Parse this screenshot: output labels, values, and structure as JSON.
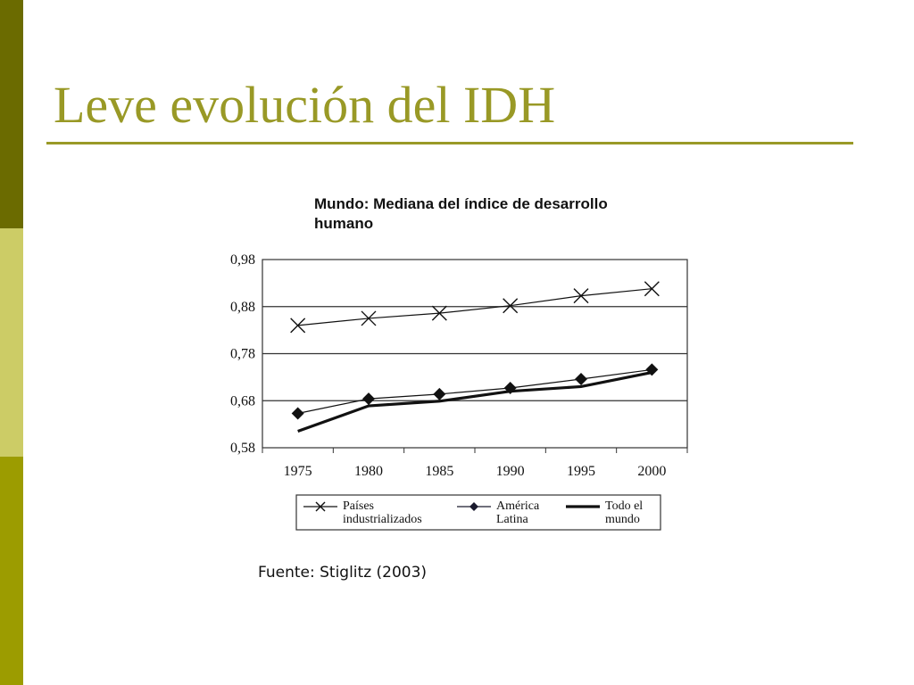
{
  "slide": {
    "title": "Leve evolución del IDH",
    "source": "Fuente: Stiglitz (2003)"
  },
  "colors": {
    "accent": "#999926",
    "bar_dark": "#6b6b00",
    "bar_light": "#cccc66",
    "bar_mid": "#9c9c00",
    "america_latina_marker": "#1a1a2e"
  },
  "chart_data": {
    "type": "line",
    "title": [
      "Mundo: Mediana del índice de desarrollo",
      "humano"
    ],
    "x": [
      "1975",
      "1980",
      "1985",
      "1990",
      "1995",
      "2000"
    ],
    "ylim": [
      0.58,
      0.98
    ],
    "yticks": [
      {
        "value": 0.98,
        "label": "0,98"
      },
      {
        "value": 0.88,
        "label": "0,88"
      },
      {
        "value": 0.78,
        "label": "0,78"
      },
      {
        "value": 0.68,
        "label": "0,68"
      },
      {
        "value": 0.58,
        "label": "0,58"
      }
    ],
    "grid": "horizontal",
    "legend_position": "bottom",
    "series": [
      {
        "name": [
          "Países",
          "industrializados"
        ],
        "marker": "x",
        "style": "thin",
        "values": [
          0.84,
          0.855,
          0.866,
          0.882,
          0.903,
          0.918
        ]
      },
      {
        "name": [
          "América",
          "Latina"
        ],
        "marker": "diamond",
        "style": "thin",
        "values": [
          0.653,
          0.684,
          0.694,
          0.707,
          0.726,
          0.746
        ]
      },
      {
        "name": [
          "Todo el",
          "mundo"
        ],
        "marker": "none",
        "style": "thick",
        "values": [
          0.615,
          0.669,
          0.679,
          0.7,
          0.71,
          0.74
        ]
      }
    ]
  }
}
